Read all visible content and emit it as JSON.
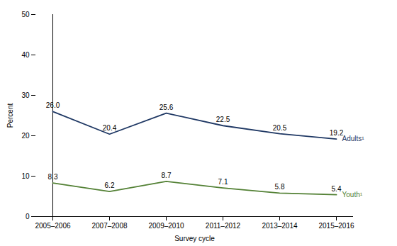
{
  "chart_data": {
    "type": "line",
    "categories": [
      "2005–2006",
      "2007–2008",
      "2009–2010",
      "2011–2012",
      "2013–2014",
      "2015–2016"
    ],
    "series": [
      {
        "name": "Adults¹",
        "color": "#1f3864",
        "values": [
          26.0,
          20.4,
          25.6,
          22.5,
          20.5,
          19.2
        ],
        "value_labels": [
          "26.0",
          "20.4",
          "25.6",
          "22.5",
          "20.5",
          "19.2"
        ]
      },
      {
        "name": "Youth¹",
        "color": "#538135",
        "values": [
          8.3,
          6.2,
          8.7,
          7.1,
          5.8,
          5.4
        ],
        "value_labels": [
          "8.3",
          "6.2",
          "8.7",
          "7.1",
          "5.8",
          "5.4"
        ]
      }
    ],
    "xlabel": "Survey cycle",
    "ylabel": "Percent",
    "ylim": [
      0,
      50
    ],
    "yticks": [
      0,
      10,
      20,
      30,
      40,
      50
    ],
    "grid": false,
    "data_labels": true
  }
}
